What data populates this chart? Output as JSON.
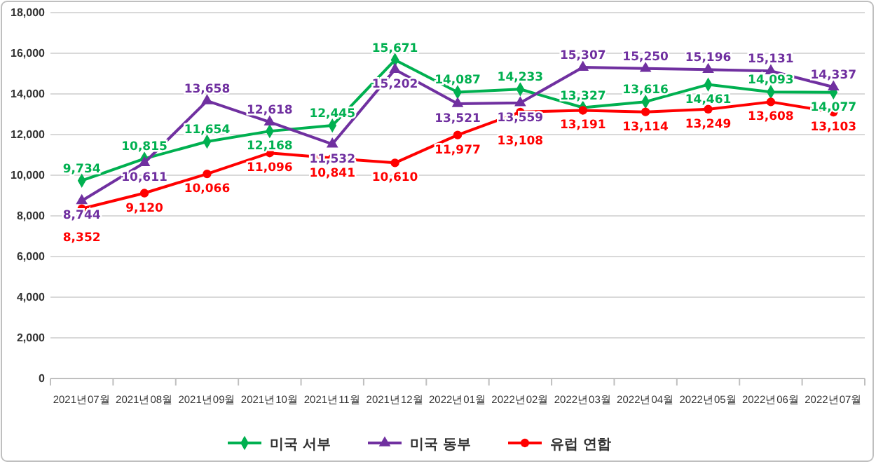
{
  "chart_data": {
    "type": "line",
    "categories": [
      "2021년07월",
      "2021년08월",
      "2021년09월",
      "2021년10월",
      "2021년11월",
      "2021년12월",
      "2022년01월",
      "2022년02월",
      "2022년03월",
      "2022년04월",
      "2022년05월",
      "2022년06월",
      "2022년07월"
    ],
    "series": [
      {
        "name": "미국 서부",
        "color": "#00b050",
        "marker": "diamond",
        "values": [
          9734,
          10815,
          11654,
          12168,
          12445,
          15671,
          14087,
          14233,
          13327,
          13616,
          14461,
          14093,
          14077
        ],
        "value_labels": [
          "9,734",
          "10,815",
          "11,654",
          "12,168",
          "12,445",
          "15,671",
          "14,087",
          "14,233",
          "13,327",
          "13,616",
          "14,461",
          "14,093",
          "14,077"
        ]
      },
      {
        "name": "미국 동부",
        "color": "#7030a0",
        "marker": "triangle",
        "values": [
          8744,
          10611,
          13658,
          12618,
          11532,
          15202,
          13521,
          13559,
          15307,
          15250,
          15196,
          15131,
          14337
        ],
        "value_labels": [
          "8,744",
          "10,611",
          "13,658",
          "12,618",
          "11,532",
          "15,202",
          "13,521",
          "13,559",
          "15,307",
          "15,250",
          "15,196",
          "15,131",
          "14,337"
        ]
      },
      {
        "name": "유럽 연합",
        "color": "#ff0000",
        "marker": "circle",
        "values": [
          8352,
          9120,
          10066,
          11096,
          10841,
          10610,
          11977,
          13108,
          13191,
          13114,
          13249,
          13608,
          13103
        ],
        "value_labels": [
          "8,352",
          "9,120",
          "10,066",
          "11,096",
          "10,841",
          "10,610",
          "11,977",
          "13,108",
          "13,191",
          "13,114",
          "13,249",
          "13,608",
          "13,103"
        ]
      }
    ],
    "ylim": [
      0,
      18000
    ],
    "yticks": [
      0,
      {
        "value": 2000,
        "label": "2,000"
      },
      {
        "value": 4000,
        "label": "4,000"
      },
      {
        "value": 6000,
        "label": "6,000"
      },
      {
        "value": 8000,
        "label": "8,000"
      },
      {
        "value": 10000,
        "label": "10,000"
      },
      {
        "value": 12000,
        "label": "12,000"
      },
      {
        "value": 14000,
        "label": "14,000"
      },
      {
        "value": 16000,
        "label": "16,000"
      },
      {
        "value": 18000,
        "label": "18,000"
      }
    ],
    "grid": "y",
    "legend": "bottom",
    "line_style": "solid"
  }
}
